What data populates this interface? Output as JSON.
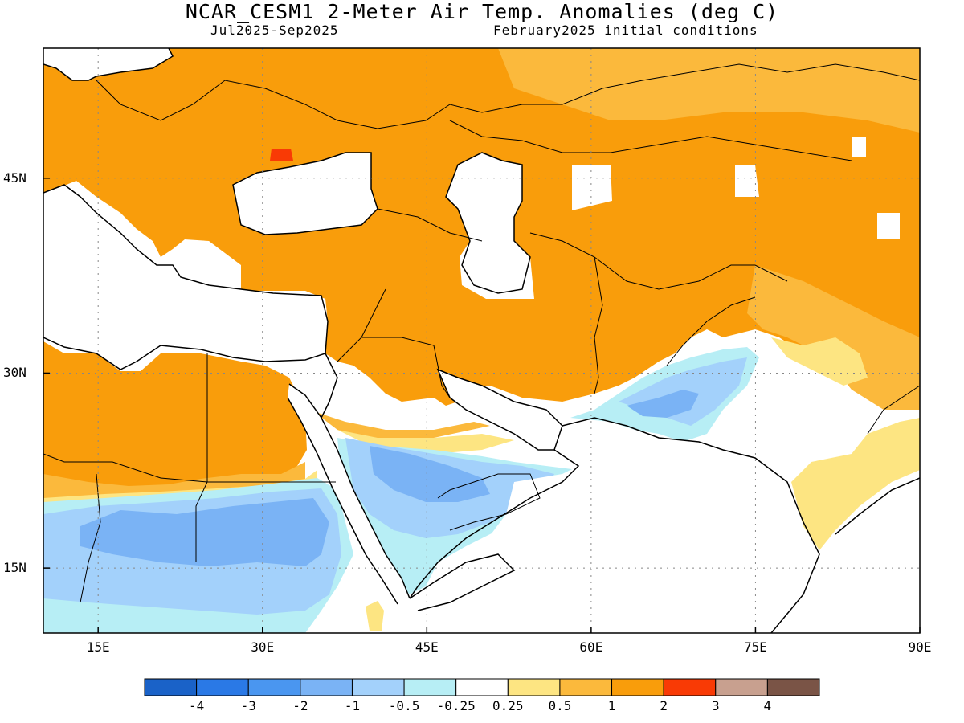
{
  "header": {
    "title": "NCAR_CESM1 2-Meter Air Temp. Anomalies (deg C)",
    "period": "Jul2025-Sep2025",
    "init": "February2025 initial conditions"
  },
  "map": {
    "lon_range": [
      10,
      90
    ],
    "lat_range": [
      10,
      55
    ],
    "lat_ticks": [
      {
        "value": 45,
        "label": "45N"
      },
      {
        "value": 30,
        "label": "30N"
      },
      {
        "value": 15,
        "label": "15N"
      }
    ],
    "lon_ticks": [
      {
        "value": 15,
        "label": "15E"
      },
      {
        "value": 30,
        "label": "30E"
      },
      {
        "value": 45,
        "label": "45E"
      },
      {
        "value": 60,
        "label": "60E"
      },
      {
        "value": 75,
        "label": "75E"
      },
      {
        "value": 90,
        "label": "90E"
      }
    ],
    "grid": true
  },
  "colorbar": {
    "colors": [
      "#1a62c8",
      "#2a79e6",
      "#4a96f0",
      "#7ab3f5",
      "#a3d1fb",
      "#b7eef5",
      "#ffffff",
      "#fde582",
      "#fbb93c",
      "#f99d0b",
      "#f93a05",
      "#c8a08f",
      "#7a5446"
    ],
    "labels": [
      "-4",
      "-3",
      "-2",
      "-1",
      "-0.5",
      "-0.25",
      "0.25",
      "0.5",
      "1",
      "2",
      "3",
      "4"
    ]
  }
}
